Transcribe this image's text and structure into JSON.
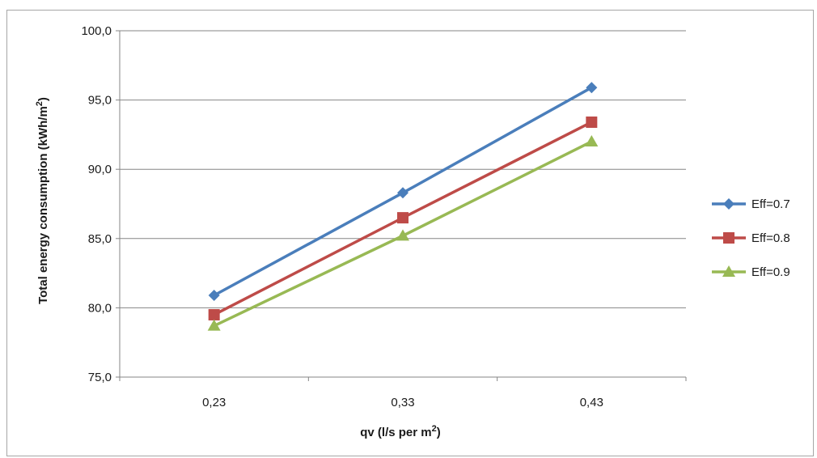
{
  "chart_data": {
    "type": "line",
    "x": [
      "0,23",
      "0,33",
      "0,43"
    ],
    "series": [
      {
        "name": "Eff=0.7",
        "values": [
          80.9,
          88.3,
          95.9
        ],
        "color": "#4a7ebb",
        "marker": "diamond"
      },
      {
        "name": "Eff=0.8",
        "values": [
          79.5,
          86.5,
          93.4
        ],
        "color": "#be4b48",
        "marker": "square"
      },
      {
        "name": "Eff=0.9",
        "values": [
          78.7,
          85.2,
          92.0
        ],
        "color": "#98b954",
        "marker": "triangle"
      }
    ],
    "y_ticks": [
      "75,0",
      "80,0",
      "85,0",
      "90,0",
      "95,0",
      "100,0"
    ],
    "ylim": [
      75,
      100
    ],
    "xlabel": {
      "main": "qv (l/s per m",
      "sup": "2",
      "tail": ")"
    },
    "ylabel": {
      "main": "Total energy consumption  (kWh/m",
      "sup": "2",
      "tail": ")"
    },
    "grid": "horizontal",
    "legend_position": "right"
  }
}
